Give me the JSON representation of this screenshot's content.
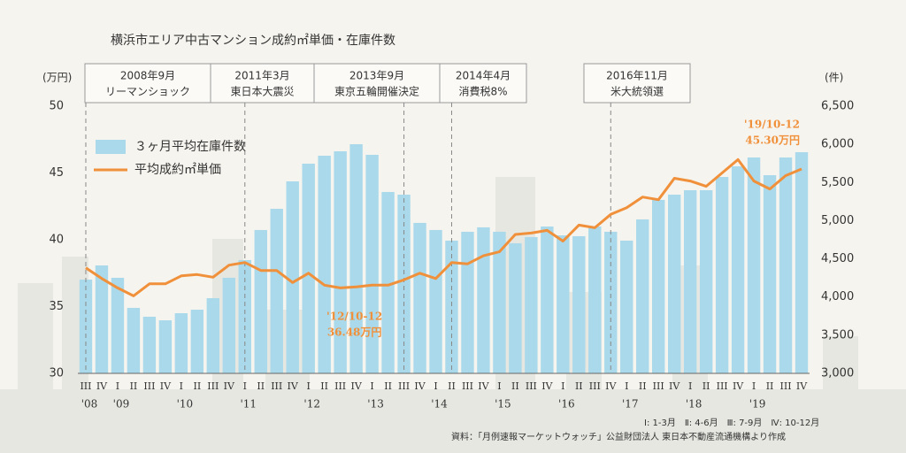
{
  "chart_data": {
    "type": "bar-line",
    "title": "横浜市エリア中古マンション成約㎡単価・在庫件数",
    "y_unit": "(万円)",
    "y2_unit": "(件)",
    "categories": [
      "III",
      "IV",
      "I",
      "II",
      "III",
      "IV",
      "I",
      "II",
      "III",
      "IV",
      "I",
      "II",
      "III",
      "IV",
      "I",
      "II",
      "III",
      "IV",
      "I",
      "II",
      "III",
      "IV",
      "I",
      "II",
      "III",
      "IV",
      "I",
      "II",
      "III",
      "IV",
      "I",
      "II",
      "III",
      "IV",
      "I",
      "II",
      "III",
      "IV",
      "I",
      "II",
      "III",
      "IV",
      "I",
      "II",
      "III",
      "IV"
    ],
    "year_labels": [
      "'08",
      null,
      "'09",
      null,
      null,
      null,
      "'10",
      null,
      null,
      null,
      "'11",
      null,
      null,
      null,
      "'12",
      null,
      null,
      null,
      "'13",
      null,
      null,
      null,
      "'14",
      null,
      null,
      null,
      "'15",
      null,
      null,
      null,
      "'16",
      null,
      null,
      null,
      "'17",
      null,
      null,
      null,
      "'18",
      null,
      null,
      null,
      "'19",
      null,
      null,
      null
    ],
    "series": [
      {
        "name": "３ヶ月平均在庫件数",
        "type": "bar",
        "axis": "y2",
        "color": "#a9d9ea",
        "values": [
          4228,
          4414,
          4252,
          3858,
          3742,
          3695,
          3788,
          3834,
          3985,
          4252,
          4484,
          4878,
          5156,
          5515,
          5747,
          5851,
          5909,
          6002,
          5863,
          5376,
          5341,
          4971,
          4878,
          4739,
          4855,
          4913,
          4855,
          4704,
          4785,
          4924,
          4808,
          4797,
          4924,
          4855,
          4739,
          5017,
          5272,
          5341,
          5399,
          5399,
          5573,
          5712,
          5828,
          5596,
          5828,
          5897
        ]
      },
      {
        "name": "平均成約㎡単価",
        "type": "line",
        "axis": "y",
        "color": "#f0903a",
        "values": [
          37.9,
          37.1,
          36.4,
          35.8,
          36.7,
          36.7,
          37.3,
          37.4,
          37.2,
          38.1,
          38.3,
          37.7,
          37.7,
          36.8,
          37.5,
          36.6,
          36.4,
          36.48,
          36.6,
          36.6,
          37.0,
          37.5,
          37.1,
          38.3,
          38.2,
          38.8,
          39.1,
          40.4,
          40.5,
          40.7,
          39.9,
          41.1,
          40.9,
          41.9,
          42.4,
          43.2,
          43.0,
          44.6,
          44.4,
          44.0,
          45.0,
          46.0,
          44.4,
          43.8,
          44.8,
          45.3
        ],
        "value_labels": [
          null,
          null,
          null,
          null,
          null,
          null,
          null,
          null,
          null,
          null,
          null,
          null,
          null,
          null,
          null,
          null,
          null,
          "36.48万円",
          null,
          null,
          null,
          null,
          null,
          null,
          null,
          null,
          null,
          null,
          null,
          null,
          null,
          null,
          null,
          null,
          null,
          null,
          null,
          null,
          null,
          null,
          null,
          null,
          null,
          null,
          null,
          "45.30万円"
        ]
      }
    ],
    "value_periods": [
      {
        "index_label": "'12/10-12"
      },
      {
        "index_label": "'19/10-12"
      }
    ],
    "ylim": [
      30,
      50
    ],
    "yticks": [
      30,
      35,
      40,
      45,
      50
    ],
    "y2lim": [
      3000,
      6500
    ],
    "y2ticks": [
      {
        "value": 3000,
        "label": "3,000"
      },
      {
        "value": 3500,
        "label": "3,500"
      },
      {
        "value": 4000,
        "label": "4,000"
      },
      {
        "value": 4500,
        "label": "4,500"
      },
      {
        "value": 5000,
        "label": "5,000"
      },
      {
        "value": 5500,
        "label": "5,500"
      },
      {
        "value": 6000,
        "label": "6,000"
      },
      {
        "value": 6500,
        "label": "6,500"
      }
    ],
    "events": [
      {
        "date": "2008年9月",
        "label": "リーマンショック"
      },
      {
        "date": "2011年3月",
        "label": "東日本大震災"
      },
      {
        "date": "2013年9月",
        "label": "東京五輪開催決定"
      },
      {
        "date": "2014年4月",
        "label": "消費税8%"
      },
      {
        "date": "2016年11月",
        "label": "米大統領選"
      }
    ],
    "quarter_note": "Ⅰ: 1-3月　Ⅱ: 4-6月　Ⅲ: 7-9月　Ⅳ: 10-12月",
    "source": "資料：「月例速報マーケットウォッチ」公益財団法人 東日本不動産流通機構より作成"
  }
}
